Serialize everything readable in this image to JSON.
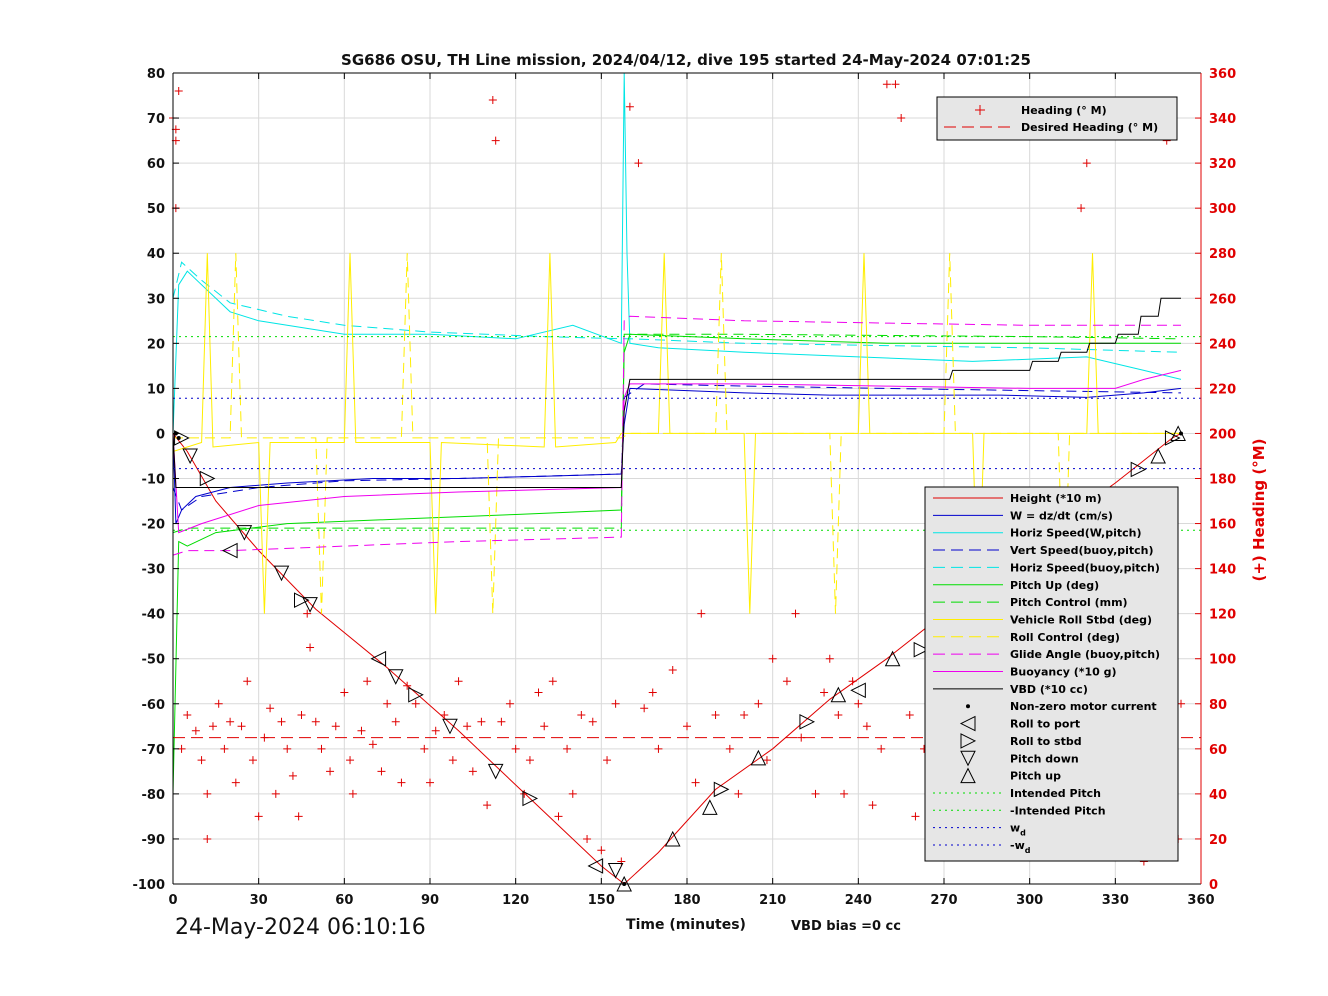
{
  "chart_data": {
    "type": "line",
    "title": "SG686 OSU, TH Line mission, 2024/04/12, dive 195 started 24-May-2024 07:01:25",
    "xlabel": "Time (minutes)",
    "ylabel": "",
    "y2label": "(+) Heading (°M)",
    "xlim": [
      0,
      360
    ],
    "ylim": [
      -100,
      80
    ],
    "y2lim": [
      0,
      360
    ],
    "xticks": [
      "0",
      "30",
      "60",
      "90",
      "120",
      "150",
      "180",
      "210",
      "240",
      "270",
      "300",
      "330",
      "360"
    ],
    "yticks": [
      "80",
      "70",
      "60",
      "50",
      "40",
      "30",
      "20",
      "10",
      "0",
      "-10",
      "-20",
      "-30",
      "-40",
      "-50",
      "-60",
      "-70",
      "-80",
      "-90",
      "-100"
    ],
    "y2ticks": [
      "360",
      "340",
      "320",
      "300",
      "280",
      "260",
      "240",
      "220",
      "200",
      "180",
      "160",
      "140",
      "120",
      "100",
      "80",
      "60",
      "40",
      "20",
      "0"
    ],
    "grid": true,
    "timestamp": "24-May-2024 06:10:16",
    "vbd_bias": "VBD bias =0 cc",
    "heading_legend": {
      "placement": "top-right",
      "entries": [
        "Heading (° M)",
        "Desired Heading (° M)"
      ]
    },
    "main_legend": {
      "placement": "bottom-right",
      "entries": [
        {
          "label": "Height (*10 m)",
          "color": "#e00000",
          "style": "solid"
        },
        {
          "label": "W = dz/dt (cm/s)",
          "color": "#0000cc",
          "style": "solid"
        },
        {
          "label": "Horiz Speed(W,pitch)",
          "color": "#00e5e5",
          "style": "solid"
        },
        {
          "label": "Vert Speed(buoy,pitch)",
          "color": "#0000cc",
          "style": "dashed"
        },
        {
          "label": "Horiz Speed(buoy,pitch)",
          "color": "#00e5e5",
          "style": "dashed"
        },
        {
          "label": "Pitch Up (deg)",
          "color": "#00dd00",
          "style": "solid"
        },
        {
          "label": "Pitch Control (mm)",
          "color": "#00dd00",
          "style": "dashed"
        },
        {
          "label": "Vehicle Roll Stbd (deg)",
          "color": "#ffee00",
          "style": "solid"
        },
        {
          "label": "Roll Control (deg)",
          "color": "#ffee00",
          "style": "dashed"
        },
        {
          "label": "Glide Angle (buoy,pitch)",
          "color": "#ee00ee",
          "style": "dashed"
        },
        {
          "label": "Buoyancy (*10 g)",
          "color": "#ee00ee",
          "style": "solid"
        },
        {
          "label": "VBD (*10 cc)",
          "color": "#000000",
          "style": "solid"
        },
        {
          "label": "Non-zero motor current",
          "color": "#000000",
          "style": "dot"
        },
        {
          "label": "Roll to port",
          "color": "#000000",
          "style": "tri-left"
        },
        {
          "label": "Roll to stbd",
          "color": "#000000",
          "style": "tri-right"
        },
        {
          "label": "Pitch down",
          "color": "#000000",
          "style": "tri-down"
        },
        {
          "label": "Pitch up",
          "color": "#000000",
          "style": "tri-up"
        },
        {
          "label": "Intended Pitch",
          "color": "#00dd00",
          "style": "dotted"
        },
        {
          "label": "-Intended Pitch",
          "color": "#00dd00",
          "style": "dotted"
        },
        {
          "label": "w_d",
          "color": "#0000cc",
          "style": "dotted"
        },
        {
          "label": "-w_d",
          "color": "#0000cc",
          "style": "dotted"
        }
      ]
    },
    "series": [
      {
        "name": "Height (*10 m)",
        "color": "#e00000",
        "dash": "",
        "width": 1,
        "x": [
          0,
          5,
          15,
          30,
          50,
          75,
          100,
          125,
          150,
          158,
          170,
          190,
          210,
          230,
          250,
          270,
          290,
          310,
          330,
          350,
          353
        ],
        "y": [
          0,
          -4,
          -15,
          -26,
          -39,
          -52,
          -66,
          -81,
          -96,
          -100,
          -93,
          -79,
          -70,
          -59,
          -50,
          -40,
          -30,
          -20,
          -11,
          -1,
          0
        ]
      },
      {
        "name": "W = dz/dt (cm/s)",
        "color": "#0000cc",
        "dash": "",
        "width": 1,
        "x": [
          0,
          1,
          3,
          8,
          20,
          40,
          70,
          100,
          130,
          157,
          158,
          160,
          180,
          200,
          230,
          260,
          290,
          320,
          340,
          353
        ],
        "y": [
          0,
          -20,
          -17,
          -14,
          -12,
          -11,
          -10,
          -10,
          -9.5,
          -9,
          2,
          10,
          9.5,
          9,
          8.5,
          8.5,
          8.5,
          8,
          9,
          10
        ]
      },
      {
        "name": "Horiz Speed(W,pitch)",
        "color": "#00e5e5",
        "dash": "",
        "width": 1,
        "x": [
          0,
          2,
          5,
          10,
          20,
          30,
          40,
          60,
          90,
          120,
          140,
          157,
          158,
          159,
          160,
          170,
          200,
          240,
          280,
          320,
          340,
          353
        ],
        "y": [
          0,
          33,
          36,
          33,
          27,
          25,
          24,
          22,
          22,
          21,
          24,
          20,
          80,
          40,
          20,
          19,
          18,
          17,
          16,
          17,
          14,
          12
        ]
      },
      {
        "name": "Vert Speed(buoy,pitch)",
        "color": "#0000cc",
        "dash": "10,6",
        "width": 1,
        "x": [
          0,
          3,
          10,
          30,
          60,
          100,
          157,
          158,
          165,
          200,
          250,
          300,
          353
        ],
        "y": [
          -12,
          -17,
          -14,
          -12,
          -10.5,
          -10,
          -9,
          8,
          11,
          10.5,
          10,
          9.5,
          9
        ]
      },
      {
        "name": "Horiz Speed(buoy,pitch)",
        "color": "#00e5e5",
        "dash": "10,6",
        "width": 1,
        "x": [
          0,
          3,
          10,
          20,
          40,
          60,
          90,
          130,
          157,
          160,
          200,
          250,
          300,
          353
        ],
        "y": [
          30,
          38,
          34,
          29,
          26,
          24,
          22.5,
          21.5,
          21,
          21,
          20,
          19.5,
          19,
          18
        ]
      },
      {
        "name": "Pitch Up (deg)",
        "color": "#00dd00",
        "dash": "",
        "width": 1,
        "x": [
          0,
          2,
          5,
          15,
          40,
          80,
          120,
          157,
          158,
          160,
          200,
          250,
          300,
          353
        ],
        "y": [
          -80,
          -24,
          -25,
          -22,
          -20,
          -19,
          -18,
          -17,
          18,
          22,
          21,
          20,
          20,
          20
        ]
      },
      {
        "name": "Pitch Control (mm)",
        "color": "#00dd00",
        "dash": "10,6",
        "width": 1,
        "x": [
          0,
          5,
          40,
          100,
          157,
          158,
          200,
          300,
          353
        ],
        "y": [
          -22,
          -21,
          -21,
          -21,
          -21,
          22,
          22,
          21.5,
          21
        ]
      },
      {
        "name": "Vehicle Roll Stbd (deg)",
        "color": "#ffee00",
        "dash": "",
        "width": 1,
        "x": [
          0,
          5,
          10,
          12,
          14,
          30,
          32,
          34,
          60,
          62,
          64,
          90,
          92,
          94,
          130,
          132,
          134,
          155,
          157,
          160,
          170,
          172,
          174,
          200,
          202,
          204,
          240,
          242,
          244,
          280,
          282,
          284,
          320,
          322,
          324,
          353
        ],
        "y": [
          -4,
          -3,
          -2,
          40,
          -3,
          -2,
          -40,
          -2,
          -2,
          40,
          -2,
          -2,
          -40,
          -2,
          -3,
          40,
          -3,
          -2,
          0,
          0,
          0,
          40,
          0,
          0,
          -40,
          0,
          0,
          40,
          0,
          0,
          -40,
          0,
          0,
          40,
          0,
          0
        ]
      },
      {
        "name": "Roll Control (deg)",
        "color": "#ffee00",
        "dash": "10,6",
        "width": 1,
        "x": [
          0,
          20,
          22,
          24,
          50,
          52,
          54,
          80,
          82,
          84,
          110,
          112,
          114,
          157,
          160,
          190,
          192,
          194,
          230,
          232,
          234,
          270,
          272,
          274,
          310,
          312,
          314,
          353
        ],
        "y": [
          -1,
          -1,
          40,
          -1,
          -1,
          -40,
          -1,
          -1,
          40,
          -1,
          -1,
          -40,
          -1,
          -1,
          0,
          0,
          40,
          0,
          0,
          -40,
          0,
          0,
          40,
          0,
          0,
          -40,
          0,
          0
        ]
      },
      {
        "name": "Glide Angle (buoy,pitch)",
        "color": "#ee00ee",
        "dash": "10,6",
        "width": 1,
        "x": [
          0,
          5,
          20,
          60,
          100,
          157,
          158,
          160,
          200,
          250,
          300,
          353
        ],
        "y": [
          -27,
          -26,
          -26,
          -25,
          -24,
          -23,
          25,
          26,
          25,
          24.5,
          24,
          24
        ]
      },
      {
        "name": "Buoyancy (*10 g)",
        "color": "#ee00ee",
        "dash": "",
        "width": 1,
        "x": [
          0,
          2,
          10,
          30,
          60,
          100,
          157,
          158,
          160,
          200,
          250,
          300,
          330,
          340,
          353
        ],
        "y": [
          0,
          -22,
          -20,
          -16,
          -14,
          -13,
          -12,
          8,
          11,
          11,
          10.5,
          10,
          10,
          12,
          14
        ]
      },
      {
        "name": "VBD (*10 cc)",
        "color": "#000000",
        "dash": "",
        "width": 1,
        "x": [
          0,
          1,
          2,
          157,
          158,
          160,
          272,
          273,
          300,
          301,
          310,
          311,
          320,
          321,
          330,
          331,
          338,
          339,
          345,
          346,
          353
        ],
        "y": [
          0,
          -12,
          -12,
          -12,
          5,
          12,
          12,
          14,
          14,
          16,
          16,
          18,
          18,
          20,
          20,
          22,
          22,
          26,
          26,
          30,
          30
        ]
      },
      {
        "name": "Intended Pitch",
        "color": "#00dd00",
        "dash": "2,4",
        "width": 1,
        "x": [
          0,
          360
        ],
        "y": [
          21.5,
          21.5
        ]
      },
      {
        "name": "-Intended Pitch",
        "color": "#00dd00",
        "dash": "2,4",
        "width": 1,
        "x": [
          0,
          360
        ],
        "y": [
          -21.5,
          -21.5
        ]
      },
      {
        "name": "w_d",
        "color": "#0000cc",
        "dash": "2,4",
        "width": 1,
        "x": [
          0,
          360
        ],
        "y": [
          7.8,
          7.8
        ]
      },
      {
        "name": "-w_d",
        "color": "#0000cc",
        "dash": "2,4",
        "width": 1,
        "x": [
          0,
          360
        ],
        "y": [
          -7.8,
          -7.8
        ]
      },
      {
        "name": "Desired Heading (° M)",
        "color": "#e00000",
        "dash": "12,6",
        "width": 1,
        "axis": "right",
        "x": [
          0,
          360
        ],
        "y": [
          65,
          65
        ]
      }
    ],
    "heading_points": {
      "x": [
        0,
        1,
        1,
        2,
        1,
        3,
        5,
        8,
        10,
        12,
        12,
        14,
        16,
        18,
        20,
        22,
        24,
        26,
        28,
        30,
        32,
        34,
        36,
        38,
        40,
        42,
        44,
        45,
        47,
        48,
        50,
        52,
        55,
        57,
        60,
        62,
        63,
        66,
        68,
        70,
        73,
        75,
        78,
        80,
        82,
        85,
        88,
        90,
        92,
        95,
        98,
        100,
        103,
        105,
        108,
        110,
        112,
        113,
        115,
        118,
        120,
        123,
        125,
        128,
        130,
        133,
        135,
        138,
        140,
        143,
        145,
        147,
        150,
        152,
        155,
        157,
        160,
        163,
        165,
        168,
        170,
        175,
        180,
        183,
        185,
        190,
        195,
        198,
        200,
        205,
        208,
        210,
        215,
        218,
        220,
        225,
        228,
        230,
        233,
        235,
        238,
        240,
        243,
        245,
        248,
        250,
        253,
        255,
        258,
        260,
        263,
        265,
        268,
        270,
        273,
        275,
        278,
        280,
        283,
        285,
        288,
        290,
        293,
        295,
        298,
        300,
        303,
        305,
        308,
        310,
        313,
        315,
        318,
        320,
        322,
        325,
        328,
        330,
        333,
        335,
        338,
        340,
        343,
        345,
        347,
        348,
        350,
        352,
        353
      ],
      "y": [
        340,
        330,
        300,
        352,
        335,
        60,
        75,
        68,
        55,
        40,
        20,
        70,
        80,
        60,
        72,
        45,
        70,
        90,
        55,
        30,
        65,
        78,
        40,
        72,
        60,
        48,
        30,
        75,
        120,
        105,
        72,
        60,
        50,
        70,
        85,
        55,
        40,
        68,
        90,
        62,
        50,
        80,
        72,
        45,
        88,
        80,
        60,
        45,
        68,
        75,
        55,
        90,
        70,
        50,
        72,
        35,
        348,
        330,
        72,
        80,
        60,
        40,
        55,
        85,
        70,
        90,
        30,
        60,
        40,
        75,
        20,
        72,
        15,
        55,
        80,
        10,
        345,
        320,
        78,
        85,
        60,
        95,
        70,
        45,
        120,
        75,
        60,
        40,
        75,
        80,
        55,
        100,
        90,
        120,
        65,
        40,
        85,
        100,
        75,
        40,
        90,
        80,
        70,
        35,
        60,
        355,
        355,
        340,
        75,
        30,
        60,
        60,
        95,
        70,
        75,
        40,
        90,
        60,
        80,
        45,
        75,
        55,
        85,
        40,
        72,
        55,
        80,
        20,
        45,
        60,
        75,
        35,
        300,
        320,
        60,
        80,
        40,
        20,
        55,
        80,
        45,
        10,
        30,
        60,
        345,
        330,
        40,
        20,
        80
      ]
    },
    "markers": {
      "roll_to_port": [
        [
          20,
          -26
        ],
        [
          72,
          -50
        ],
        [
          148,
          -96
        ],
        [
          240,
          -57
        ]
      ],
      "roll_to_stbd": [
        [
          3,
          -1
        ],
        [
          12,
          -10
        ],
        [
          45,
          -37
        ],
        [
          85,
          -58
        ],
        [
          125,
          -81
        ],
        [
          192,
          -79
        ],
        [
          222,
          -64
        ],
        [
          262,
          -48
        ],
        [
          300,
          -27
        ],
        [
          338,
          -8
        ],
        [
          350,
          -1
        ]
      ],
      "pitch_down": [
        [
          6,
          -5
        ],
        [
          25,
          -22
        ],
        [
          38,
          -31
        ],
        [
          48,
          -38
        ],
        [
          78,
          -54
        ],
        [
          97,
          -65
        ],
        [
          113,
          -75
        ],
        [
          155,
          -97
        ]
      ],
      "pitch_up": [
        [
          158,
          -100
        ],
        [
          175,
          -90
        ],
        [
          188,
          -83
        ],
        [
          205,
          -72
        ],
        [
          233,
          -58
        ],
        [
          252,
          -50
        ],
        [
          275,
          -39
        ],
        [
          310,
          -21
        ],
        [
          325,
          -14
        ],
        [
          345,
          -5
        ],
        [
          352,
          0
        ]
      ],
      "motor_current": [
        [
          1,
          0
        ],
        [
          2,
          -1
        ],
        [
          158,
          -100
        ],
        [
          353,
          0
        ]
      ]
    }
  }
}
